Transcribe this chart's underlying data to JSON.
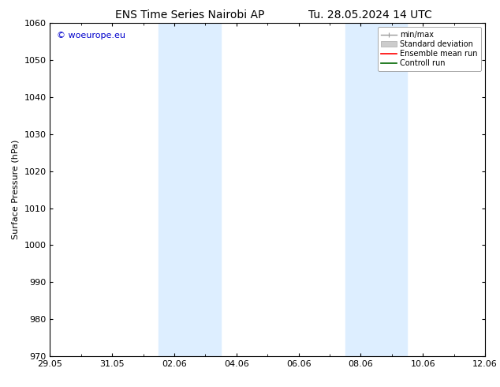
{
  "title_left": "ENS Time Series Nairobi AP",
  "title_right": "Tu. 28.05.2024 14 UTC",
  "ylabel": "Surface Pressure (hPa)",
  "ylim": [
    970,
    1060
  ],
  "yticks": [
    970,
    980,
    990,
    1000,
    1010,
    1020,
    1030,
    1040,
    1050,
    1060
  ],
  "x_start_days": 0,
  "x_end_days": 14,
  "xtick_labels": [
    "29.05",
    "31.05",
    "02.06",
    "04.06",
    "06.06",
    "08.06",
    "10.06",
    "12.06"
  ],
  "xtick_positions": [
    0,
    2,
    4,
    6,
    8,
    10,
    12,
    14
  ],
  "shaded_bands": [
    {
      "x_start": 3.5,
      "x_end": 5.5
    },
    {
      "x_start": 9.5,
      "x_end": 11.5
    }
  ],
  "shaded_color": "#ddeeff",
  "watermark_text": "© woeurope.eu",
  "watermark_color": "#0000cc",
  "legend_entries": [
    {
      "label": "min/max",
      "color": "#999999",
      "lw": 1.0
    },
    {
      "label": "Standard deviation",
      "color": "#cccccc",
      "lw": 5
    },
    {
      "label": "Ensemble mean run",
      "color": "#ff0000",
      "lw": 1.2
    },
    {
      "label": "Controll run",
      "color": "#006600",
      "lw": 1.2
    }
  ],
  "bg_color": "#ffffff",
  "title_fontsize": 10,
  "ylabel_fontsize": 8,
  "tick_fontsize": 8,
  "legend_fontsize": 7,
  "watermark_fontsize": 8
}
